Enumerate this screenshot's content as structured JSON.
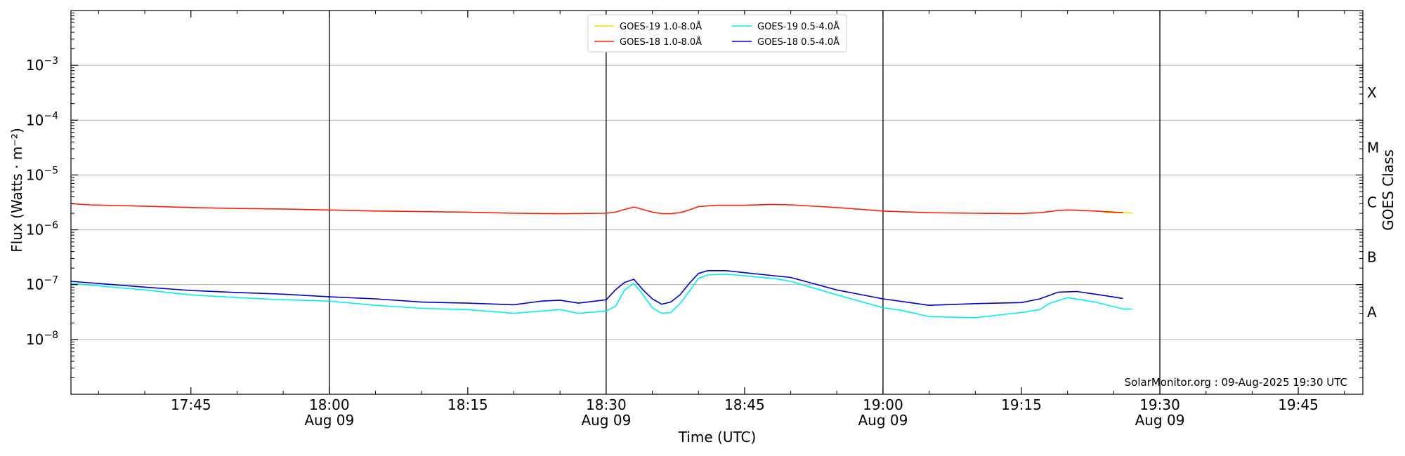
{
  "chart_data": {
    "type": "line",
    "xlabel": "Time (UTC)",
    "ylabel": "Flux (Watts · m⁻²)",
    "right_axis_label": "GOES Class",
    "credit": "SolarMonitor.org : 09-Aug-2025 19:30 UTC",
    "y_scale": "log",
    "ylim": [
      1e-09,
      0.01
    ],
    "xlim": [
      "17:32",
      "19:52"
    ],
    "grid": "horizontal",
    "legend_position": "top-center",
    "x_ticks": [
      {
        "time": "17:45",
        "label": "17:45",
        "sublabel": ""
      },
      {
        "time": "18:00",
        "label": "18:00",
        "sublabel": "Aug 09"
      },
      {
        "time": "18:15",
        "label": "18:15",
        "sublabel": ""
      },
      {
        "time": "18:30",
        "label": "18:30",
        "sublabel": "Aug 09"
      },
      {
        "time": "18:45",
        "label": "18:45",
        "sublabel": ""
      },
      {
        "time": "19:00",
        "label": "19:00",
        "sublabel": "Aug 09"
      },
      {
        "time": "19:15",
        "label": "19:15",
        "sublabel": ""
      },
      {
        "time": "19:30",
        "label": "19:30",
        "sublabel": "Aug 09"
      },
      {
        "time": "19:45",
        "label": "19:45",
        "sublabel": ""
      }
    ],
    "vertical_lines": [
      "18:00",
      "18:30",
      "19:00",
      "19:30"
    ],
    "y_ticks": [
      {
        "exp": -8,
        "label": "10",
        "sup": "−8"
      },
      {
        "exp": -7,
        "label": "10",
        "sup": "−7"
      },
      {
        "exp": -6,
        "label": "10",
        "sup": "−6"
      },
      {
        "exp": -5,
        "label": "10",
        "sup": "−5"
      },
      {
        "exp": -4,
        "label": "10",
        "sup": "−4"
      },
      {
        "exp": -3,
        "label": "10",
        "sup": "−3"
      }
    ],
    "goes_classes": [
      {
        "label": "A",
        "exp": -7.5
      },
      {
        "label": "B",
        "exp": -6.5
      },
      {
        "label": "C",
        "exp": -5.5
      },
      {
        "label": "M",
        "exp": -4.5
      },
      {
        "label": "X",
        "exp": -3.5
      }
    ],
    "series": [
      {
        "name": "GOES-19 1.0-8.0Å",
        "color": "#ffd700",
        "points": [
          [
            "19:24",
            2.05e-06
          ],
          [
            "19:25",
            2.05e-06
          ],
          [
            "19:26",
            2.05e-06
          ],
          [
            "19:27",
            2.02e-06
          ]
        ]
      },
      {
        "name": "GOES-18 1.0-8.0Å",
        "color": "#ff2000",
        "points": [
          [
            "17:32",
            3e-06
          ],
          [
            "17:34",
            2.85e-06
          ],
          [
            "17:40",
            2.7e-06
          ],
          [
            "17:45",
            2.55e-06
          ],
          [
            "17:50",
            2.45e-06
          ],
          [
            "17:55",
            2.4e-06
          ],
          [
            "18:00",
            2.3e-06
          ],
          [
            "18:05",
            2.2e-06
          ],
          [
            "18:10",
            2.15e-06
          ],
          [
            "18:15",
            2.1e-06
          ],
          [
            "18:20",
            2e-06
          ],
          [
            "18:25",
            1.97e-06
          ],
          [
            "18:30",
            2e-06
          ],
          [
            "18:31",
            2.1e-06
          ],
          [
            "18:32",
            2.35e-06
          ],
          [
            "18:33",
            2.6e-06
          ],
          [
            "18:34",
            2.35e-06
          ],
          [
            "18:35",
            2.1e-06
          ],
          [
            "18:36",
            1.98e-06
          ],
          [
            "18:37",
            1.97e-06
          ],
          [
            "18:38",
            2.05e-06
          ],
          [
            "18:39",
            2.3e-06
          ],
          [
            "18:40",
            2.65e-06
          ],
          [
            "18:42",
            2.8e-06
          ],
          [
            "18:45",
            2.8e-06
          ],
          [
            "18:48",
            2.9e-06
          ],
          [
            "18:50",
            2.85e-06
          ],
          [
            "18:55",
            2.55e-06
          ],
          [
            "19:00",
            2.2e-06
          ],
          [
            "19:05",
            2.05e-06
          ],
          [
            "19:10",
            2e-06
          ],
          [
            "19:15",
            1.98e-06
          ],
          [
            "19:17",
            2.05e-06
          ],
          [
            "19:19",
            2.25e-06
          ],
          [
            "19:20",
            2.3e-06
          ],
          [
            "19:23",
            2.2e-06
          ],
          [
            "19:26",
            2.05e-06
          ]
        ]
      },
      {
        "name": "GOES-19 0.5-4.0Å",
        "color": "#00f0f0",
        "points": [
          [
            "17:32",
            1.05e-07
          ],
          [
            "17:35",
            9.5e-08
          ],
          [
            "17:40",
            8e-08
          ],
          [
            "17:45",
            6.5e-08
          ],
          [
            "17:50",
            5.8e-08
          ],
          [
            "17:55",
            5.3e-08
          ],
          [
            "18:00",
            5e-08
          ],
          [
            "18:05",
            4.2e-08
          ],
          [
            "18:10",
            3.7e-08
          ],
          [
            "18:15",
            3.5e-08
          ],
          [
            "18:20",
            3e-08
          ],
          [
            "18:25",
            3.5e-08
          ],
          [
            "18:27",
            3e-08
          ],
          [
            "18:30",
            3.3e-08
          ],
          [
            "18:31",
            4e-08
          ],
          [
            "18:32",
            8e-08
          ],
          [
            "18:33",
            1.05e-07
          ],
          [
            "18:34",
            6.5e-08
          ],
          [
            "18:35",
            3.8e-08
          ],
          [
            "18:36",
            3e-08
          ],
          [
            "18:37",
            3.1e-08
          ],
          [
            "18:38",
            4.5e-08
          ],
          [
            "18:39",
            7.5e-08
          ],
          [
            "18:40",
            1.3e-07
          ],
          [
            "18:41",
            1.5e-07
          ],
          [
            "18:43",
            1.55e-07
          ],
          [
            "18:45",
            1.45e-07
          ],
          [
            "18:48",
            1.3e-07
          ],
          [
            "18:50",
            1.15e-07
          ],
          [
            "18:55",
            6.5e-08
          ],
          [
            "19:00",
            3.8e-08
          ],
          [
            "19:02",
            3.4e-08
          ],
          [
            "19:05",
            2.6e-08
          ],
          [
            "19:10",
            2.5e-08
          ],
          [
            "19:15",
            3.1e-08
          ],
          [
            "19:17",
            3.5e-08
          ],
          [
            "19:18",
            4.5e-08
          ],
          [
            "19:20",
            5.8e-08
          ],
          [
            "19:23",
            4.8e-08
          ],
          [
            "19:26",
            3.6e-08
          ],
          [
            "19:27",
            3.6e-08
          ]
        ]
      },
      {
        "name": "GOES-18 0.5-4.0Å",
        "color": "#0000cc",
        "points": [
          [
            "17:32",
            1.15e-07
          ],
          [
            "17:35",
            1.05e-07
          ],
          [
            "17:40",
            9e-08
          ],
          [
            "17:45",
            7.8e-08
          ],
          [
            "17:50",
            7.2e-08
          ],
          [
            "17:55",
            6.7e-08
          ],
          [
            "18:00",
            6e-08
          ],
          [
            "18:05",
            5.5e-08
          ],
          [
            "18:10",
            4.8e-08
          ],
          [
            "18:15",
            4.6e-08
          ],
          [
            "18:20",
            4.3e-08
          ],
          [
            "18:23",
            5e-08
          ],
          [
            "18:25",
            5.2e-08
          ],
          [
            "18:27",
            4.6e-08
          ],
          [
            "18:30",
            5.3e-08
          ],
          [
            "18:31",
            8e-08
          ],
          [
            "18:32",
            1.1e-07
          ],
          [
            "18:33",
            1.25e-07
          ],
          [
            "18:34",
            8e-08
          ],
          [
            "18:35",
            5.5e-08
          ],
          [
            "18:36",
            4.4e-08
          ],
          [
            "18:37",
            4.8e-08
          ],
          [
            "18:38",
            6.5e-08
          ],
          [
            "18:39",
            1.05e-07
          ],
          [
            "18:40",
            1.6e-07
          ],
          [
            "18:41",
            1.8e-07
          ],
          [
            "18:43",
            1.8e-07
          ],
          [
            "18:45",
            1.65e-07
          ],
          [
            "18:50",
            1.35e-07
          ],
          [
            "18:55",
            8e-08
          ],
          [
            "19:00",
            5.5e-08
          ],
          [
            "19:05",
            4.2e-08
          ],
          [
            "19:10",
            4.5e-08
          ],
          [
            "19:15",
            4.7e-08
          ],
          [
            "19:17",
            5.5e-08
          ],
          [
            "19:19",
            7.3e-08
          ],
          [
            "19:21",
            7.5e-08
          ],
          [
            "19:23",
            6.7e-08
          ],
          [
            "19:26",
            5.6e-08
          ]
        ]
      }
    ]
  }
}
